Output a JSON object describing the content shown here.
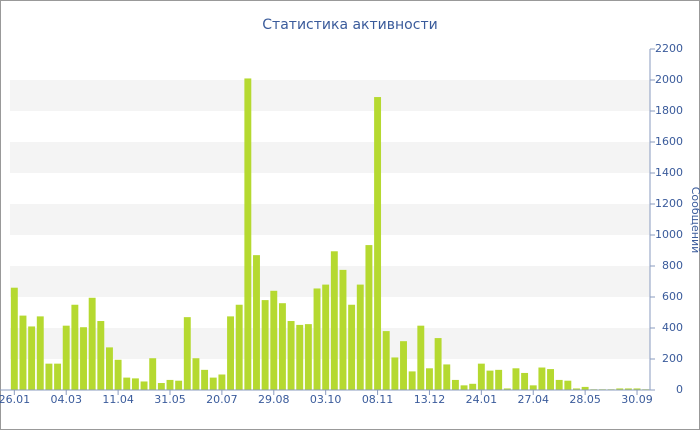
{
  "chart_data": {
    "type": "bar",
    "title": "Статистика активности",
    "y_axis_label": "Сообщений",
    "categories": [
      "26.01",
      null,
      null,
      null,
      null,
      null,
      "04.03",
      null,
      null,
      null,
      null,
      null,
      "11.04",
      null,
      null,
      null,
      null,
      null,
      "31.05",
      null,
      null,
      null,
      null,
      null,
      "20.07",
      null,
      null,
      null,
      null,
      null,
      "29.08",
      null,
      null,
      null,
      null,
      null,
      "03.10",
      null,
      null,
      null,
      null,
      null,
      "08.11",
      null,
      null,
      null,
      null,
      null,
      "13.12",
      null,
      null,
      null,
      null,
      null,
      "24.01",
      null,
      null,
      null,
      null,
      null,
      "27.04",
      null,
      null,
      null,
      null,
      null,
      "28.05",
      null,
      null,
      null,
      null,
      null,
      "30.09",
      null
    ],
    "values": [
      660,
      480,
      410,
      475,
      170,
      170,
      415,
      550,
      405,
      595,
      445,
      275,
      195,
      80,
      75,
      55,
      205,
      45,
      65,
      60,
      470,
      205,
      130,
      80,
      100,
      475,
      550,
      2010,
      870,
      580,
      640,
      560,
      445,
      420,
      425,
      655,
      680,
      895,
      775,
      550,
      680,
      935,
      1890,
      380,
      210,
      315,
      120,
      415,
      140,
      335,
      165,
      65,
      30,
      40,
      170,
      125,
      130,
      10,
      140,
      110,
      30,
      145,
      135,
      65,
      60,
      10,
      20,
      5,
      5,
      5,
      10,
      10,
      10,
      5
    ],
    "color": "#b5d930",
    "ylim": [
      0,
      2200
    ],
    "yticks": [
      0,
      200,
      400,
      600,
      800,
      1000,
      1200,
      1400,
      1600,
      1800,
      2000,
      2200
    ],
    "grid": true,
    "band_color": "#f4f4f4"
  }
}
